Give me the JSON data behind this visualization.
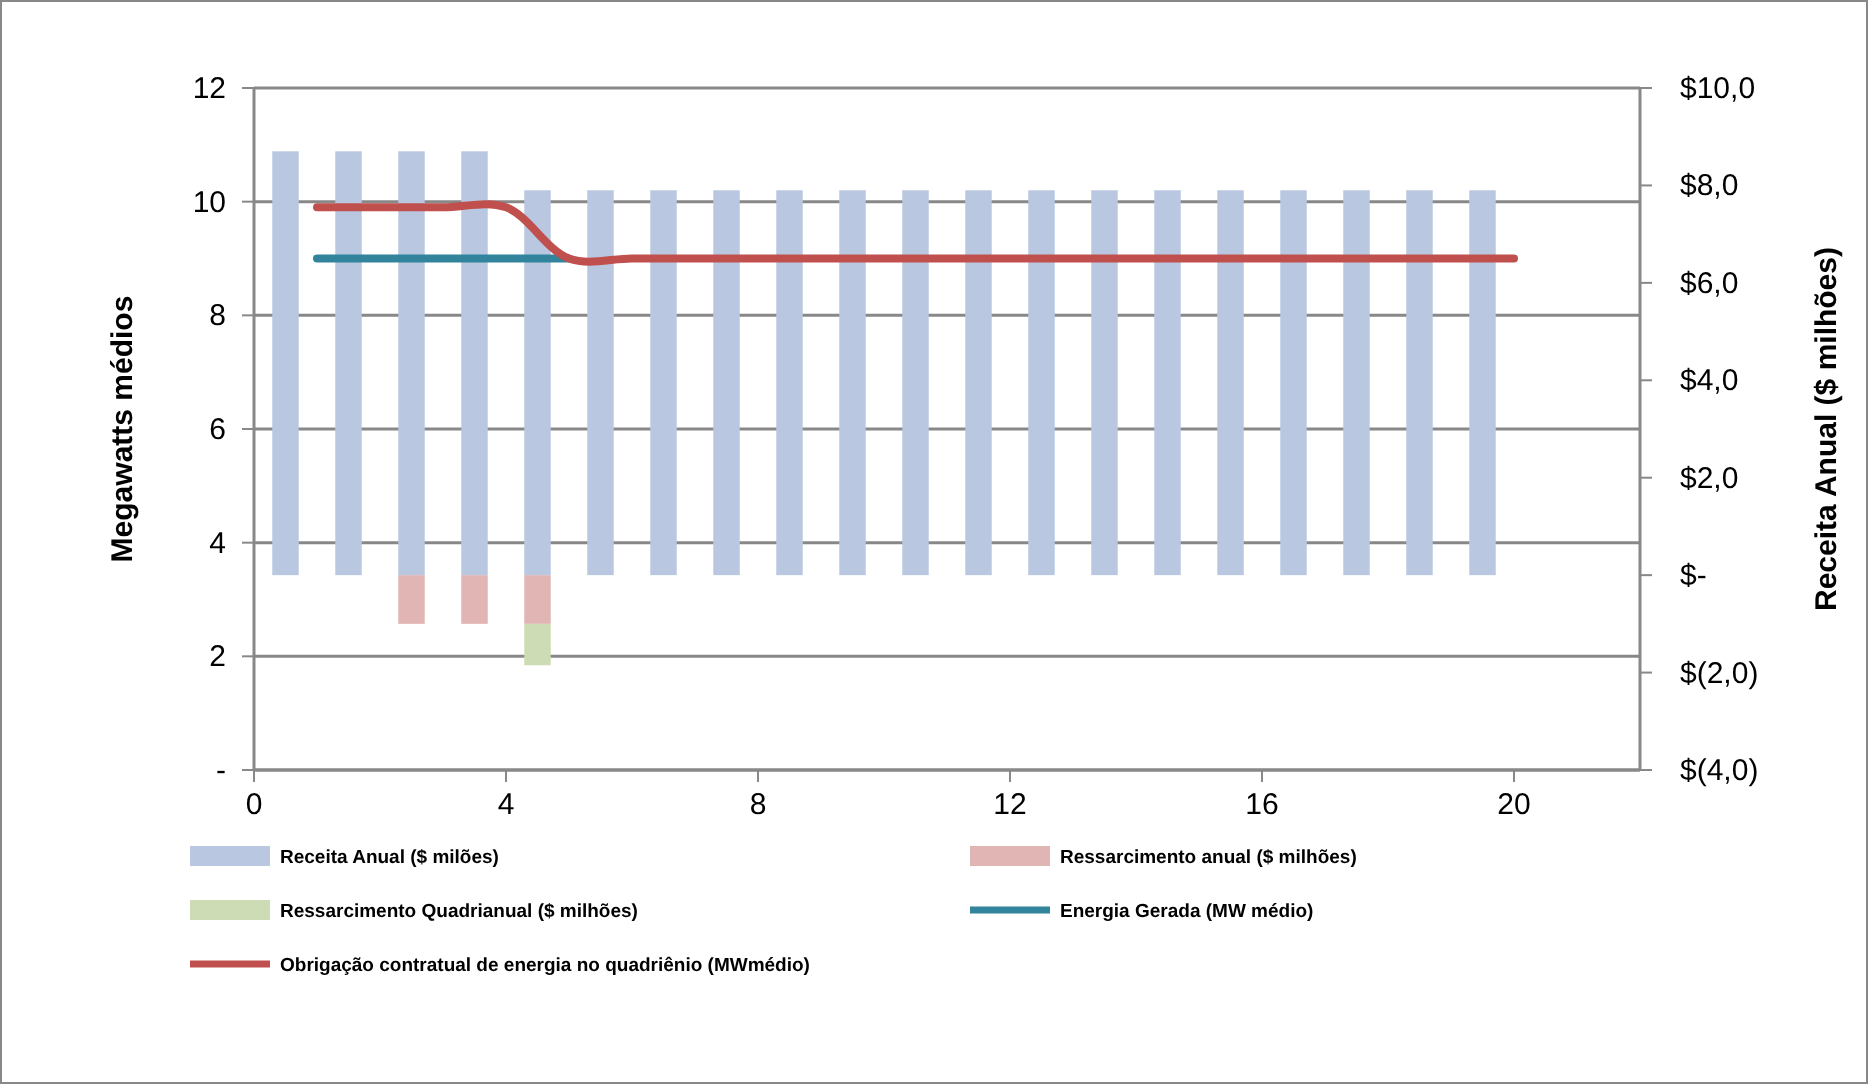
{
  "chart_data": {
    "type": "bar",
    "stacked": true,
    "xlim": [
      0,
      22
    ],
    "xticks": [
      0,
      4,
      8,
      12,
      16,
      20
    ],
    "ylim": [
      0,
      12
    ],
    "yticks": [
      {
        "value": 0,
        "label": "-"
      },
      2,
      4,
      6,
      8,
      10,
      12
    ],
    "y2lim": [
      -4,
      10
    ],
    "y2ticks": [
      {
        "value": -4,
        "label": "$(4,0)"
      },
      {
        "value": -2,
        "label": "$(2,0)"
      },
      {
        "value": 0,
        "label": "$-"
      },
      {
        "value": 2,
        "label": "$2,0"
      },
      {
        "value": 4,
        "label": "$4,0"
      },
      {
        "value": 6,
        "label": "$6,0"
      },
      {
        "value": 8,
        "label": "$8,0"
      },
      {
        "value": 10,
        "label": "$10,0"
      }
    ],
    "ylabel": "Megawatts médios",
    "y2label": "Receita Anual ($ milhões)",
    "grid": "y",
    "legend": "bottom",
    "line_style": "solid",
    "x": [
      0.5,
      1.5,
      2.5,
      3.5,
      4.5,
      5.5,
      6.5,
      7.5,
      8.5,
      9.5,
      10.5,
      11.5,
      12.5,
      13.5,
      14.5,
      15.5,
      16.5,
      17.5,
      18.5,
      19.5
    ],
    "series": [
      {
        "name": "Receita Anual ($ milões)",
        "axis": "y2",
        "color": "#b9c7e0",
        "values": [
          8.7,
          8.7,
          8.7,
          8.7,
          7.9,
          7.9,
          7.9,
          7.9,
          7.9,
          7.9,
          7.9,
          7.9,
          7.9,
          7.9,
          7.9,
          7.9,
          7.9,
          7.9,
          7.9,
          7.9
        ]
      },
      {
        "name": "Ressarcimento anual ($ milhões)",
        "axis": "y2",
        "color": "#e0b5b4",
        "values": [
          null,
          null,
          -1.0,
          -1.0,
          -1.0,
          null,
          null,
          null,
          null,
          null,
          null,
          null,
          null,
          null,
          null,
          null,
          null,
          null,
          null,
          null
        ]
      },
      {
        "name": "Ressarcimento Quadrianual ($ milhões)",
        "axis": "y2",
        "color": "#cddcb5",
        "values": [
          null,
          null,
          null,
          null,
          -0.85,
          null,
          null,
          null,
          null,
          null,
          null,
          null,
          null,
          null,
          null,
          null,
          null,
          null,
          null,
          null
        ]
      },
      {
        "name": "Energia Gerada (MW médio)",
        "type": "line",
        "color": "#31849b",
        "x": [
          1,
          2,
          3,
          4,
          5
        ],
        "values": [
          9,
          9,
          9,
          9,
          9
        ]
      },
      {
        "name": "Obrigação contratual de energia no quadriênio (MWmédio)",
        "type": "line",
        "color": "#c0504d",
        "x": [
          1,
          2,
          3,
          4,
          5,
          6,
          7,
          8,
          9,
          10,
          11,
          12,
          13,
          14,
          15,
          16,
          17,
          18,
          19,
          20
        ],
        "values": [
          9.9,
          9.9,
          9.9,
          9.9,
          9,
          9,
          9,
          9,
          9,
          9,
          9,
          9,
          9,
          9,
          9,
          9,
          9,
          9,
          9,
          9
        ]
      }
    ]
  }
}
